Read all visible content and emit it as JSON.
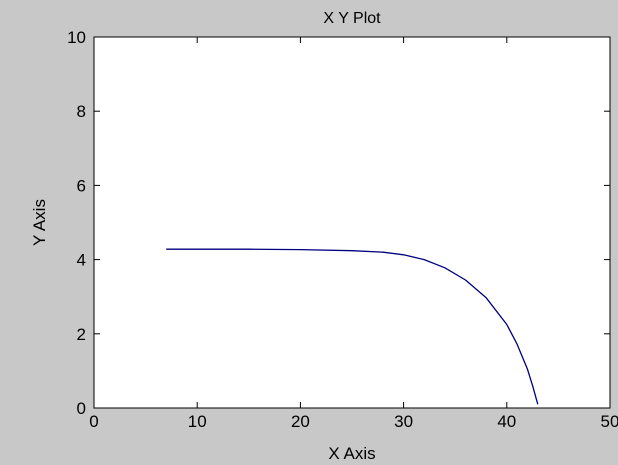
{
  "chart_data": {
    "type": "line",
    "title": "X Y Plot",
    "xlabel": "X Axis",
    "ylabel": "Y Axis",
    "xlim": [
      0,
      50
    ],
    "ylim": [
      0,
      10
    ],
    "xticks": [
      0,
      10,
      20,
      30,
      40,
      50
    ],
    "yticks": [
      0,
      2,
      4,
      6,
      8,
      10
    ],
    "grid": false,
    "colors": {
      "background": "#c8c8c8",
      "plot_area": "#ffffff",
      "line": "#00007f"
    },
    "series": [
      {
        "color": "#00007f",
        "x": [
          7,
          10,
          15,
          20,
          25,
          28,
          30,
          32,
          34,
          36,
          38,
          40,
          41,
          42,
          42.5,
          43
        ],
        "y": [
          4.28,
          4.28,
          4.28,
          4.27,
          4.24,
          4.2,
          4.13,
          4.0,
          3.78,
          3.45,
          2.97,
          2.25,
          1.72,
          1.05,
          0.6,
          0.1
        ]
      }
    ]
  }
}
